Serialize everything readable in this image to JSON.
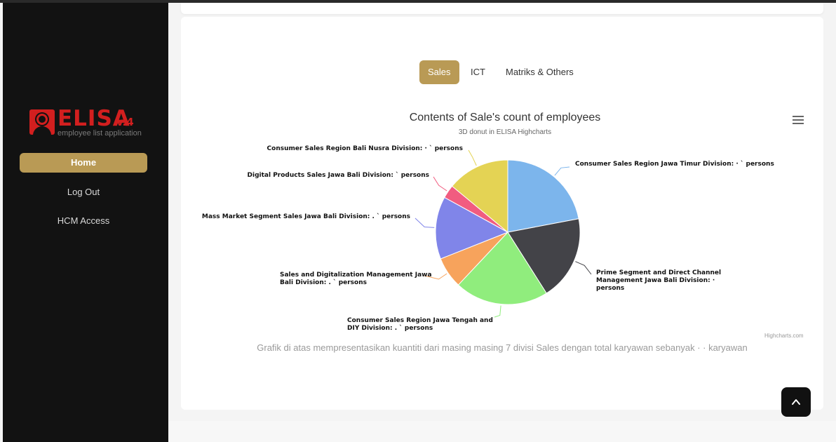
{
  "sidebar": {
    "logo": {
      "text": "ELISA",
      "version": "v.4",
      "subtitle": "employee list application"
    },
    "nav": [
      {
        "label": "Home",
        "active": true
      },
      {
        "label": "Log Out"
      },
      {
        "label": "HCM Access"
      }
    ]
  },
  "tabs": [
    {
      "label": "Sales",
      "active": true
    },
    {
      "label": "ICT"
    },
    {
      "label": "Matriks & Others"
    }
  ],
  "chart_data": {
    "type": "pie",
    "title": "Contents of Sale's count of employees",
    "subtitle": "3D donut in ELISA Highcharts",
    "credits": "Highcharts.com",
    "slices": [
      {
        "label_lines": [
          "Consumer Sales Region Jawa Timur Division: · ` persons"
        ],
        "value": 22,
        "color": "#7cb5ec"
      },
      {
        "label_lines": [
          "Prime Segment and Direct Channel",
          "Management Jawa Bali Division: ·",
          "persons"
        ],
        "value": 19,
        "color": "#434348"
      },
      {
        "label_lines": [
          "Consumer Sales Region Jawa Tengah and",
          "DIY Division: . ` persons"
        ],
        "value": 21,
        "color": "#90ed7d"
      },
      {
        "label_lines": [
          "Sales and Digitalization Management Jawa",
          "Bali Division: . ` persons"
        ],
        "value": 7,
        "color": "#f7a35c"
      },
      {
        "label_lines": [
          "Mass Market Segment Sales Jawa Bali Division: . ` persons"
        ],
        "value": 14,
        "color": "#8085e9"
      },
      {
        "label_lines": [
          "Digital Products Sales Jawa Bali Division: ` persons"
        ],
        "value": 3,
        "color": "#f15c80"
      },
      {
        "label_lines": [
          "Consumer Sales Region Bali Nusra Division: · ` persons"
        ],
        "value": 14,
        "color": "#e4d354"
      }
    ]
  },
  "caption": "Grafik di atas mempresentasikan kuantiti dari masing masing 7 divisi Sales dengan total karyawan sebanyak · · karyawan",
  "icons": {
    "menu": "hamburger-menu-icon",
    "scroll_top": "chevron-up-icon"
  }
}
